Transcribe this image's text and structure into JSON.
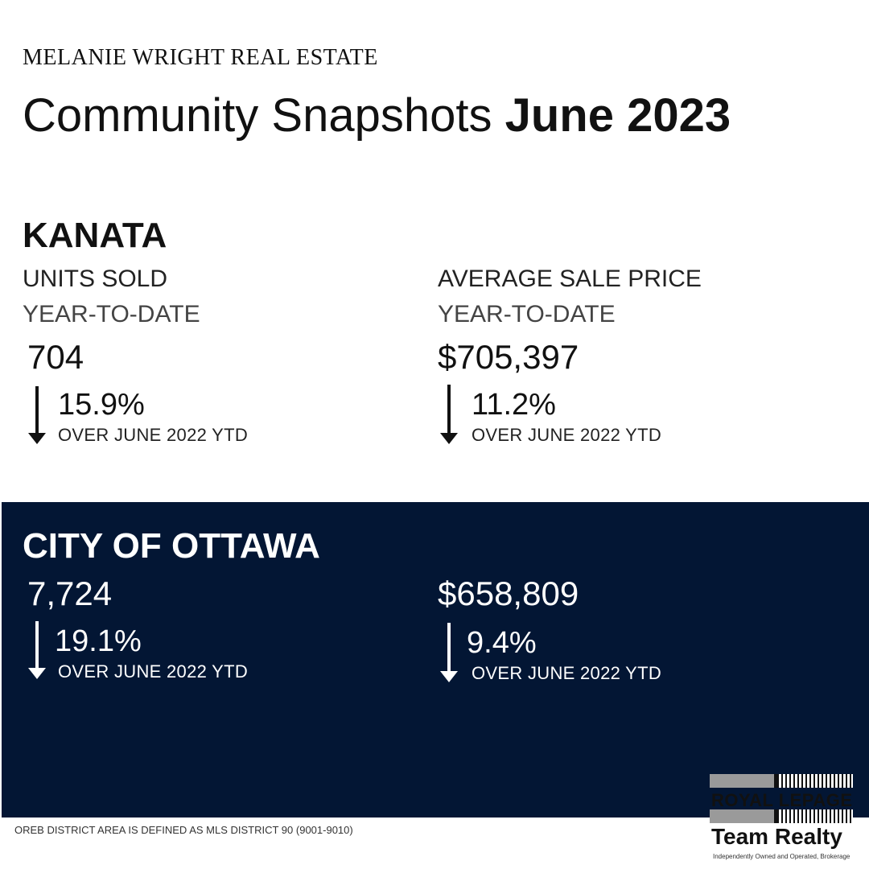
{
  "header": {
    "brand": "MELANIE WRIGHT REAL ESTATE",
    "title_regular": "Community Snapshots",
    "title_bold": "June 2023"
  },
  "kanata": {
    "name": "KANATA",
    "units": {
      "label": "UNITS SOLD",
      "sublabel": "YEAR-TO-DATE",
      "value": "704",
      "change": "15.9%",
      "direction": "down",
      "comparison": "OVER JUNE 2022 YTD"
    },
    "price": {
      "label": "AVERAGE SALE PRICE",
      "sublabel": "YEAR-TO-DATE",
      "value": "$705,397",
      "change": "11.2%",
      "direction": "down",
      "comparison": "OVER JUNE 2022 YTD"
    }
  },
  "ottawa": {
    "name": "CITY OF OTTAWA",
    "units": {
      "value": "7,724",
      "change": "19.1%",
      "direction": "down",
      "comparison": "OVER JUNE 2022 YTD"
    },
    "price": {
      "value": "$658,809",
      "change": "9.4%",
      "direction": "down",
      "comparison": "OVER JUNE 2022 YTD"
    }
  },
  "footnote": "OREB DISTRICT AREA IS DEFINED AS MLS DISTRICT 90 (9001-9010)",
  "logo": {
    "line1": "ROYAL LEPAGE",
    "line2": "Team Realty",
    "tagline": "Independently Owned and Operated, Brokerage"
  },
  "colors": {
    "navy_panel": "#031634",
    "text": "#111111"
  },
  "icons": {
    "trend": "arrow-down-icon"
  }
}
